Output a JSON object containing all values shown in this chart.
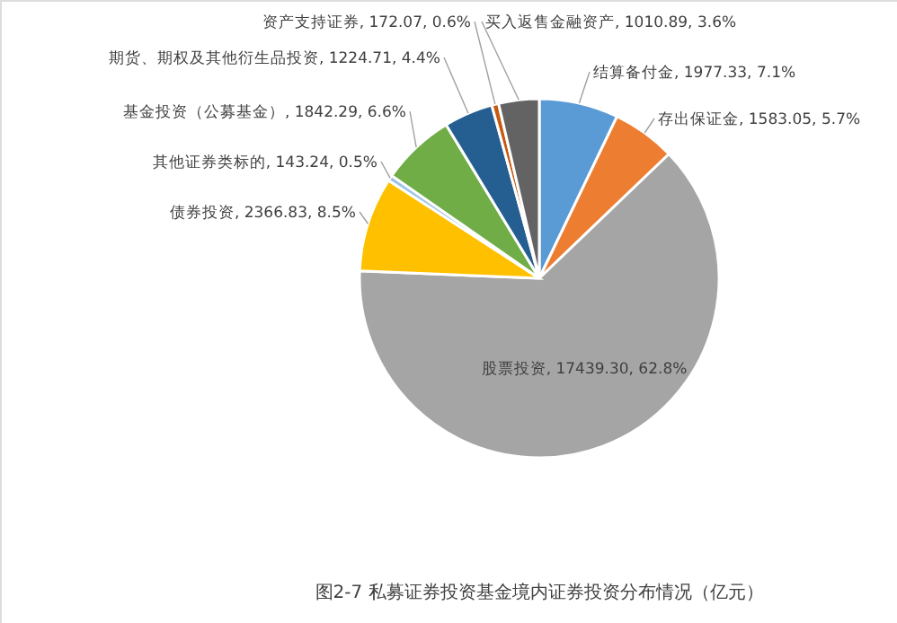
{
  "chart_data": {
    "type": "pie",
    "categories": [
      "结算备付金",
      "存出保证金",
      "股票投资",
      "债券投资",
      "其他证券类标的",
      "基金投资（公募基金）",
      "期货、期权及其他衍生品投资",
      "资产支持证券",
      "买入返售金融资产"
    ],
    "values": [
      1977.33,
      1583.05,
      17439.3,
      2366.83,
      143.24,
      1842.29,
      1224.71,
      172.07,
      1010.89
    ],
    "colors": [
      "#5b9bd5",
      "#ed7d31",
      "#a5a5a5",
      "#ffc000",
      "#9dc3e6",
      "#70ad47",
      "#255e91",
      "#c55a11",
      "#636363"
    ],
    "value_labels": [
      "1977.33, 7.1%",
      "1583.05, 5.7%",
      "17439.30, 62.8%",
      "2366.83, 8.5%",
      "143.24, 0.5%",
      "1842.29, 6.6%",
      "1224.71, 4.4%",
      "172.07, 0.6%",
      "1010.89, 3.6%"
    ],
    "annotations": [
      "图2-7 私募证券投资基金境内证券投资分布情况（亿元）"
    ]
  }
}
